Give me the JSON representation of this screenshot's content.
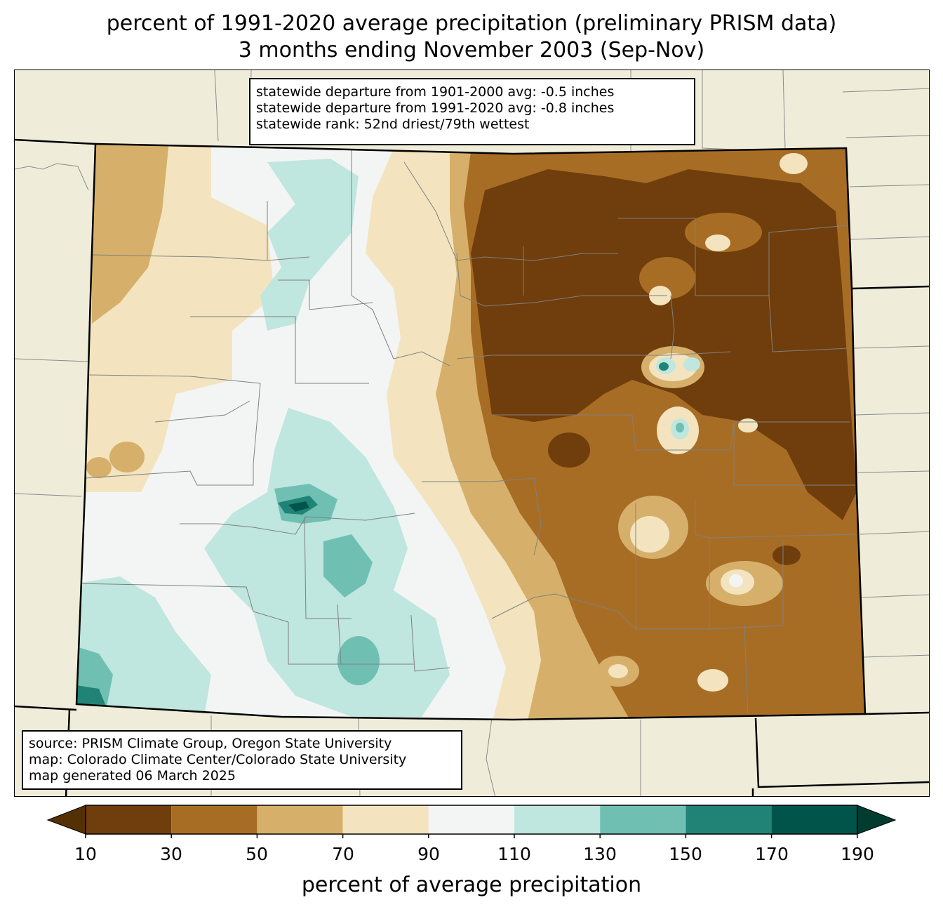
{
  "title": {
    "line1": "percent of 1991-2020 average precipitation (preliminary PRISM data)",
    "line2": "3 months ending November 2003 (Sep-Nov)"
  },
  "stats": {
    "line1": "statewide departure from 1901-2000 avg: -0.5 inches",
    "line2": "statewide departure from 1991-2020 avg: -0.8 inches",
    "line3": "statewide rank: 52nd driest/79th wettest"
  },
  "source": {
    "line1": "source: PRISM Climate Group, Oregon State University",
    "line2": "map: Colorado Climate Center/Colorado State University",
    "line3": "map generated 06 March 2025"
  },
  "colorbar": {
    "label": "percent of average precipitation",
    "ticks": [
      "10",
      "30",
      "50",
      "70",
      "90",
      "110",
      "130",
      "150",
      "170",
      "190"
    ],
    "colors": {
      "under": "#543005",
      "c10_30": "#6f3e0c",
      "c30_50": "#a86d24",
      "c50_70": "#d6b06b",
      "c70_90": "#f3e4bf",
      "c90_110": "#f3f5f4",
      "c110_130": "#bfe6df",
      "c130_150": "#6fc0b3",
      "c150_170": "#218376",
      "c170_190": "#01544a",
      "over": "#003c30"
    }
  },
  "map": {
    "background_color": "#efedda",
    "state_border_color": "#000000",
    "county_border_color": "#808080"
  }
}
